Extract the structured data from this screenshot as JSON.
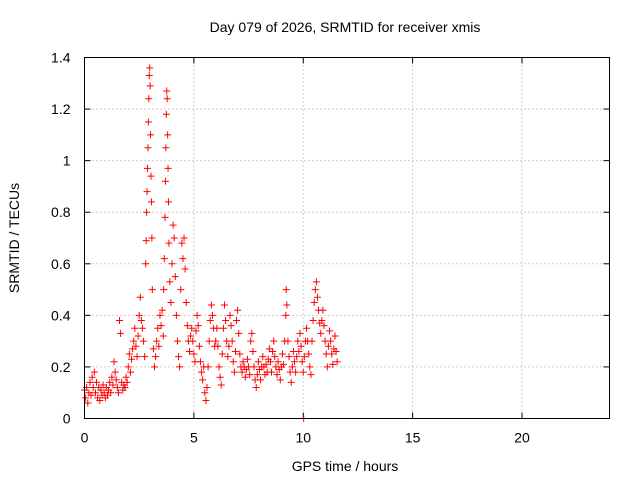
{
  "chart_data": {
    "type": "scatter",
    "title": "Day 079 of 2026, SRMTID for receiver xmis",
    "xlabel": "GPS time / hours",
    "ylabel": "SRMTID / TECUs",
    "xlim": [
      0,
      24
    ],
    "ylim": [
      0,
      1.4
    ],
    "grid": true,
    "marker": "+",
    "color": "#ff0000",
    "xticks": [
      0,
      5,
      10,
      15,
      20
    ],
    "xtick_labels": [
      "0",
      "5",
      "10",
      "15",
      "20"
    ],
    "yticks": [
      0,
      0.2,
      0.4,
      0.6,
      0.8,
      1.0,
      1.2,
      1.4
    ],
    "ytick_labels": [
      "0",
      "0.2",
      "0.4",
      "0.6",
      "0.8",
      "1",
      "1.2",
      "1.4"
    ],
    "series": [
      {
        "name": "SRMTID",
        "points": [
          [
            0.0,
            0.11
          ],
          [
            0.05,
            0.08
          ],
          [
            0.1,
            0.12
          ],
          [
            0.15,
            0.06
          ],
          [
            0.2,
            0.1
          ],
          [
            0.25,
            0.14
          ],
          [
            0.3,
            0.09
          ],
          [
            0.35,
            0.16
          ],
          [
            0.4,
            0.12
          ],
          [
            0.45,
            0.18
          ],
          [
            0.5,
            0.1
          ],
          [
            0.55,
            0.14
          ],
          [
            0.6,
            0.08
          ],
          [
            0.65,
            0.12
          ],
          [
            0.7,
            0.07
          ],
          [
            0.75,
            0.11
          ],
          [
            0.8,
            0.09
          ],
          [
            0.85,
            0.13
          ],
          [
            0.9,
            0.1
          ],
          [
            0.95,
            0.08
          ],
          [
            1.0,
            0.12
          ],
          [
            1.05,
            0.09
          ],
          [
            1.1,
            0.11
          ],
          [
            1.15,
            0.14
          ],
          [
            1.2,
            0.1
          ],
          [
            1.25,
            0.16
          ],
          [
            1.3,
            0.13
          ],
          [
            1.35,
            0.22
          ],
          [
            1.4,
            0.18
          ],
          [
            1.45,
            0.15
          ],
          [
            1.5,
            0.12
          ],
          [
            1.55,
            0.1
          ],
          [
            1.6,
            0.38
          ],
          [
            1.65,
            0.33
          ],
          [
            1.7,
            0.14
          ],
          [
            1.75,
            0.11
          ],
          [
            1.8,
            0.13
          ],
          [
            1.85,
            0.12
          ],
          [
            1.9,
            0.16
          ],
          [
            1.95,
            0.14
          ],
          [
            2.0,
            0.2
          ],
          [
            2.05,
            0.25
          ],
          [
            2.1,
            0.18
          ],
          [
            2.15,
            0.23
          ],
          [
            2.2,
            0.27
          ],
          [
            2.25,
            0.3
          ],
          [
            2.3,
            0.35
          ],
          [
            2.35,
            0.28
          ],
          [
            2.4,
            0.24
          ],
          [
            2.45,
            0.32
          ],
          [
            2.5,
            0.4
          ],
          [
            2.55,
            0.47
          ],
          [
            2.6,
            0.38
          ],
          [
            2.65,
            0.35
          ],
          [
            2.7,
            0.3
          ],
          [
            2.75,
            0.24
          ],
          [
            2.8,
            0.6
          ],
          [
            2.82,
            0.69
          ],
          [
            2.84,
            0.8
          ],
          [
            2.86,
            0.88
          ],
          [
            2.88,
            0.97
          ],
          [
            2.9,
            1.05
          ],
          [
            2.92,
            1.15
          ],
          [
            2.94,
            1.24
          ],
          [
            2.96,
            1.33
          ],
          [
            2.98,
            1.36
          ],
          [
            3.0,
            1.29
          ],
          [
            3.02,
            1.1
          ],
          [
            3.04,
            0.94
          ],
          [
            3.06,
            0.84
          ],
          [
            3.08,
            0.7
          ],
          [
            3.1,
            0.5
          ],
          [
            3.15,
            0.27
          ],
          [
            3.2,
            0.2
          ],
          [
            3.25,
            0.24
          ],
          [
            3.3,
            0.3
          ],
          [
            3.35,
            0.35
          ],
          [
            3.4,
            0.28
          ],
          [
            3.45,
            0.4
          ],
          [
            3.5,
            0.36
          ],
          [
            3.55,
            0.42
          ],
          [
            3.6,
            0.32
          ],
          [
            3.62,
            0.5
          ],
          [
            3.65,
            0.62
          ],
          [
            3.68,
            0.78
          ],
          [
            3.7,
            0.92
          ],
          [
            3.72,
            1.05
          ],
          [
            3.74,
            1.18
          ],
          [
            3.76,
            1.27
          ],
          [
            3.78,
            1.24
          ],
          [
            3.8,
            1.1
          ],
          [
            3.82,
            0.97
          ],
          [
            3.84,
            0.84
          ],
          [
            3.86,
            0.68
          ],
          [
            3.9,
            0.53
          ],
          [
            3.95,
            0.45
          ],
          [
            4.0,
            0.6
          ],
          [
            4.05,
            0.75
          ],
          [
            4.1,
            0.7
          ],
          [
            4.15,
            0.55
          ],
          [
            4.2,
            0.4
          ],
          [
            4.25,
            0.3
          ],
          [
            4.3,
            0.24
          ],
          [
            4.35,
            0.2
          ],
          [
            4.4,
            0.5
          ],
          [
            4.45,
            0.68
          ],
          [
            4.5,
            0.62
          ],
          [
            4.55,
            0.7
          ],
          [
            4.6,
            0.58
          ],
          [
            4.65,
            0.45
          ],
          [
            4.7,
            0.36
          ],
          [
            4.75,
            0.3
          ],
          [
            4.8,
            0.26
          ],
          [
            4.85,
            0.32
          ],
          [
            4.9,
            0.35
          ],
          [
            4.95,
            0.3
          ],
          [
            5.0,
            0.25
          ],
          [
            5.05,
            0.22
          ],
          [
            5.1,
            0.34
          ],
          [
            5.15,
            0.4
          ],
          [
            5.2,
            0.36
          ],
          [
            5.25,
            0.28
          ],
          [
            5.3,
            0.22
          ],
          [
            5.35,
            0.18
          ],
          [
            5.4,
            0.15
          ],
          [
            5.45,
            0.2
          ],
          [
            5.5,
            0.1
          ],
          [
            5.55,
            0.07
          ],
          [
            5.6,
            0.12
          ],
          [
            5.65,
            0.2
          ],
          [
            5.7,
            0.3
          ],
          [
            5.75,
            0.38
          ],
          [
            5.8,
            0.44
          ],
          [
            5.85,
            0.4
          ],
          [
            5.9,
            0.35
          ],
          [
            5.95,
            0.28
          ],
          [
            6.0,
            0.3
          ],
          [
            6.05,
            0.35
          ],
          [
            6.1,
            0.28
          ],
          [
            6.15,
            0.2
          ],
          [
            6.2,
            0.16
          ],
          [
            6.25,
            0.13
          ],
          [
            6.3,
            0.25
          ],
          [
            6.35,
            0.35
          ],
          [
            6.4,
            0.44
          ],
          [
            6.45,
            0.38
          ],
          [
            6.5,
            0.3
          ],
          [
            6.55,
            0.24
          ],
          [
            6.6,
            0.28
          ],
          [
            6.65,
            0.4
          ],
          [
            6.7,
            0.36
          ],
          [
            6.75,
            0.3
          ],
          [
            6.8,
            0.22
          ],
          [
            6.85,
            0.18
          ],
          [
            6.9,
            0.26
          ],
          [
            6.95,
            0.38
          ],
          [
            7.0,
            0.42
          ],
          [
            7.05,
            0.33
          ],
          [
            7.1,
            0.25
          ],
          [
            7.15,
            0.2
          ],
          [
            7.2,
            0.18
          ],
          [
            7.25,
            0.22
          ],
          [
            7.3,
            0.2
          ],
          [
            7.35,
            0.16
          ],
          [
            7.4,
            0.19
          ],
          [
            7.45,
            0.23
          ],
          [
            7.5,
            0.2
          ],
          [
            7.55,
            0.17
          ],
          [
            7.6,
            0.3
          ],
          [
            7.65,
            0.33
          ],
          [
            7.7,
            0.26
          ],
          [
            7.75,
            0.2
          ],
          [
            7.8,
            0.15
          ],
          [
            7.85,
            0.12
          ],
          [
            7.9,
            0.17
          ],
          [
            7.95,
            0.22
          ],
          [
            8.0,
            0.19
          ],
          [
            8.05,
            0.15
          ],
          [
            8.1,
            0.2
          ],
          [
            8.15,
            0.24
          ],
          [
            8.2,
            0.2
          ],
          [
            8.25,
            0.17
          ],
          [
            8.3,
            0.21
          ],
          [
            8.35,
            0.18
          ],
          [
            8.4,
            0.23
          ],
          [
            8.45,
            0.27
          ],
          [
            8.5,
            0.22
          ],
          [
            8.55,
            0.18
          ],
          [
            8.6,
            0.26
          ],
          [
            8.65,
            0.3
          ],
          [
            8.7,
            0.24
          ],
          [
            8.75,
            0.2
          ],
          [
            8.8,
            0.17
          ],
          [
            8.85,
            0.22
          ],
          [
            8.9,
            0.19
          ],
          [
            8.95,
            0.15
          ],
          [
            9.0,
            0.2
          ],
          [
            9.05,
            0.25
          ],
          [
            9.1,
            0.21
          ],
          [
            9.15,
            0.3
          ],
          [
            9.2,
            0.4
          ],
          [
            9.22,
            0.5
          ],
          [
            9.25,
            0.44
          ],
          [
            9.3,
            0.3
          ],
          [
            9.35,
            0.24
          ],
          [
            9.4,
            0.18
          ],
          [
            9.45,
            0.14
          ],
          [
            9.5,
            0.2
          ],
          [
            9.55,
            0.26
          ],
          [
            9.6,
            0.22
          ],
          [
            9.65,
            0.18
          ],
          [
            9.7,
            0.24
          ],
          [
            9.75,
            0.3
          ],
          [
            9.8,
            0.26
          ],
          [
            9.85,
            0.33
          ],
          [
            9.9,
            0.28
          ],
          [
            9.95,
            0.22
          ],
          [
            10.0,
            0.18
          ],
          [
            10.02,
            0.0
          ],
          [
            10.05,
            0.24
          ],
          [
            10.1,
            0.3
          ],
          [
            10.15,
            0.35
          ],
          [
            10.2,
            0.3
          ],
          [
            10.25,
            0.25
          ],
          [
            10.3,
            0.2
          ],
          [
            10.35,
            0.17
          ],
          [
            10.4,
            0.3
          ],
          [
            10.45,
            0.38
          ],
          [
            10.5,
            0.45
          ],
          [
            10.55,
            0.5
          ],
          [
            10.6,
            0.53
          ],
          [
            10.65,
            0.47
          ],
          [
            10.7,
            0.42
          ],
          [
            10.75,
            0.37
          ],
          [
            10.8,
            0.33
          ],
          [
            10.85,
            0.38
          ],
          [
            10.9,
            0.42
          ],
          [
            10.95,
            0.36
          ],
          [
            11.0,
            0.3
          ],
          [
            11.05,
            0.25
          ],
          [
            11.1,
            0.2
          ],
          [
            11.15,
            0.28
          ],
          [
            11.2,
            0.34
          ],
          [
            11.25,
            0.3
          ],
          [
            11.3,
            0.25
          ],
          [
            11.35,
            0.21
          ],
          [
            11.4,
            0.27
          ],
          [
            11.45,
            0.32
          ],
          [
            11.5,
            0.26
          ],
          [
            11.55,
            0.22
          ]
        ]
      }
    ]
  }
}
